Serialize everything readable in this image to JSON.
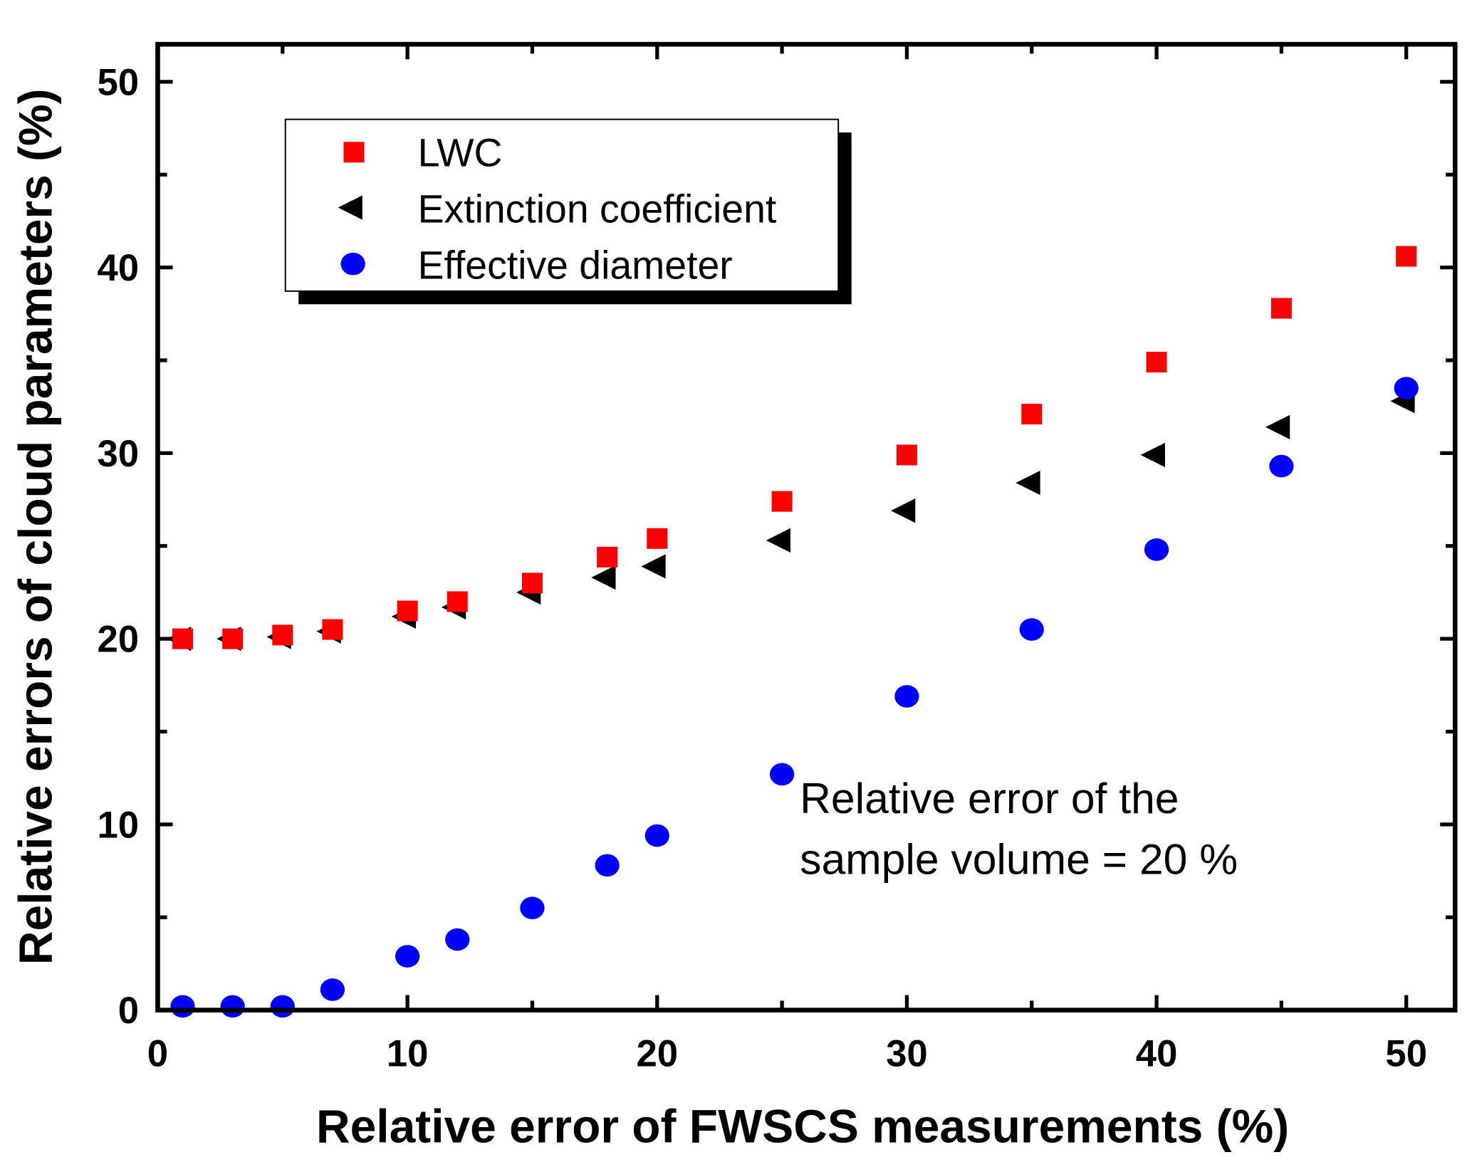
{
  "chart_data": {
    "type": "scatter",
    "title": "",
    "xlabel": "Relative error of FWSCS measurements (%)",
    "ylabel": "Relative errors of cloud parameters (%)",
    "xlim": [
      0,
      52
    ],
    "ylim": [
      0,
      52
    ],
    "xticks": [
      "0",
      "10",
      "20",
      "30",
      "40",
      "50"
    ],
    "yticks": [
      "0",
      "10",
      "20",
      "30",
      "40",
      "50"
    ],
    "grid": false,
    "legend_position": "top-left",
    "annotation": [
      "Relative error of the",
      "sample volume = 20 %"
    ],
    "x": [
      1,
      3,
      5,
      7,
      10,
      12,
      15,
      18,
      20,
      25,
      30,
      35,
      40,
      45,
      50
    ],
    "series": [
      {
        "name": "LWC",
        "marker": "square",
        "color": "#ff0000",
        "values": [
          20.0,
          20.0,
          20.2,
          20.5,
          21.5,
          22.0,
          23.0,
          24.4,
          25.4,
          27.4,
          29.9,
          32.1,
          34.9,
          37.8,
          40.6
        ]
      },
      {
        "name": "Extinction coefficient",
        "marker": "triangle-left",
        "color": "#000000",
        "values": [
          20.0,
          20.0,
          20.1,
          20.4,
          21.2,
          21.7,
          22.5,
          23.3,
          23.9,
          25.3,
          26.9,
          28.4,
          29.9,
          31.4,
          32.8
        ]
      },
      {
        "name": "Effective diameter",
        "marker": "circle",
        "color": "#0000ff",
        "values": [
          0.2,
          0.2,
          0.2,
          1.1,
          2.9,
          3.8,
          5.5,
          7.8,
          9.4,
          12.7,
          16.9,
          20.5,
          24.8,
          29.3,
          33.5
        ]
      }
    ]
  }
}
